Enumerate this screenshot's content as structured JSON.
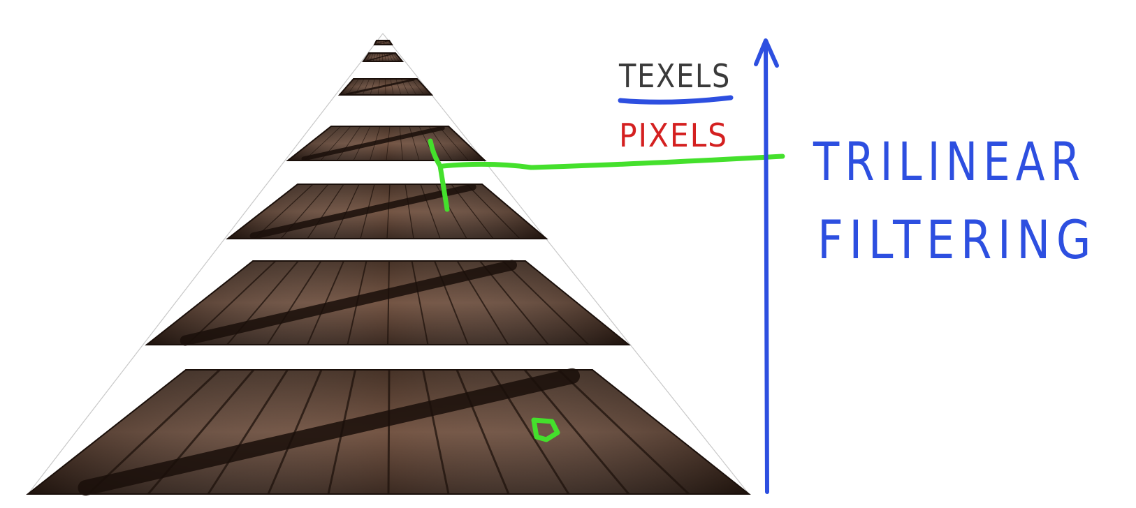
{
  "annotations": {
    "texels_label": "TEXELS",
    "pixels_label": "PIXELS",
    "title_line1": "TRILINEAR",
    "title_line2": "FILTERING"
  },
  "colors": {
    "texels": "#3a3a3a",
    "underline": "#2d4fe0",
    "pixels": "#d42020",
    "title": "#2d4fe0",
    "axis_arrow": "#2d4fe0",
    "pointer": "#44e02c",
    "wood_dark": "#2b1a12",
    "wood_mid": "#5a3b2b",
    "wood_light": "#7a5744"
  },
  "mipmap_levels": 7
}
